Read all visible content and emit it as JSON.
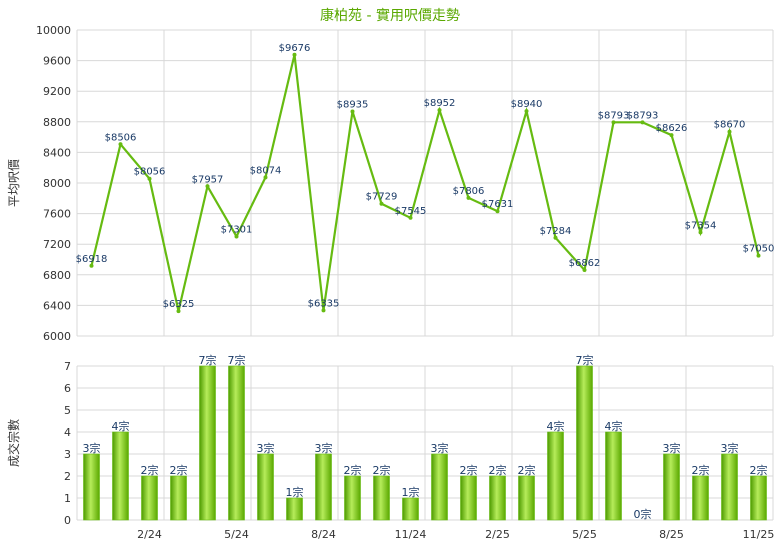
{
  "chart_data": [
    {
      "type": "line",
      "title": "康柏苑 - 實用呎價走勢",
      "ylabel": "平均呎價",
      "ylim": [
        6000,
        10000
      ],
      "yticks": [
        "6000",
        "6400",
        "6800",
        "7200",
        "7600",
        "8000",
        "8400",
        "8800",
        "9200",
        "9600",
        "10000"
      ],
      "grid": true,
      "line_color": "#66bb11",
      "values": [
        6918,
        8506,
        8056,
        6325,
        7957,
        7301,
        8074,
        9676,
        6335,
        8935,
        7729,
        7545,
        8952,
        7806,
        7631,
        8940,
        7284,
        6862,
        8793,
        8793,
        8626,
        7354,
        8670,
        7050
      ],
      "labels": [
        "$6918",
        "$8506",
        "$8056",
        "$6325",
        "$7957",
        "$7301",
        "$8074",
        "$9676",
        "$6335",
        "$8935",
        "$7729",
        "$7545",
        "$8952",
        "$7806",
        "$7631",
        "$8940",
        "$7284",
        "$6862",
        "$8793",
        "$8793",
        "$8626",
        "$7354",
        "$8670",
        "$7050"
      ]
    },
    {
      "type": "bar",
      "ylabel": "成交宗數",
      "ylim": [
        0,
        7
      ],
      "yticks": [
        "0",
        "1",
        "2",
        "3",
        "4",
        "5",
        "6",
        "7"
      ],
      "grid": true,
      "bar_color": "#66bb11",
      "values": [
        3,
        4,
        2,
        2,
        7,
        7,
        3,
        1,
        3,
        2,
        2,
        1,
        3,
        2,
        2,
        2,
        4,
        7,
        4,
        0,
        3,
        2,
        3,
        2
      ],
      "labels": [
        "3宗",
        "4宗",
        "2宗",
        "2宗",
        "7宗",
        "7宗",
        "3宗",
        "1宗",
        "3宗",
        "2宗",
        "2宗",
        "1宗",
        "3宗",
        "2宗",
        "2宗",
        "2宗",
        "4宗",
        "7宗",
        "4宗",
        "0宗",
        "3宗",
        "2宗",
        "3宗",
        "2宗"
      ],
      "x_tick_labels": [
        {
          "index": 2,
          "text": "2/24"
        },
        {
          "index": 5,
          "text": "5/24"
        },
        {
          "index": 8,
          "text": "8/24"
        },
        {
          "index": 11,
          "text": "11/24"
        },
        {
          "index": 14,
          "text": "2/25"
        },
        {
          "index": 17,
          "text": "5/25"
        },
        {
          "index": 20,
          "text": "8/25"
        },
        {
          "index": 23,
          "text": "11/25"
        }
      ]
    }
  ]
}
